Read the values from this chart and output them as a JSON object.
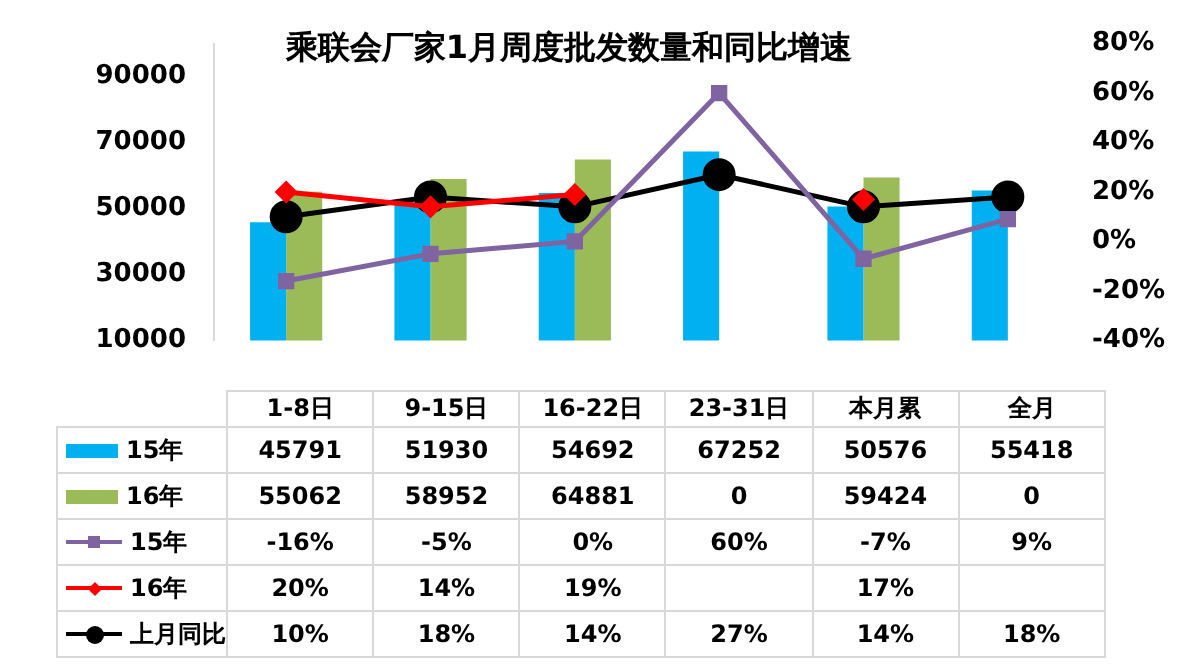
{
  "chart_data": {
    "type": "bar",
    "title": "乘联会厂家1月周度批发数量和同比增速",
    "categories": [
      "1-8日",
      "9-15日",
      "16-22日",
      "23-31日",
      "本月累",
      "全月"
    ],
    "series": [
      {
        "name": "15年",
        "color": "#00b0f0",
        "values": [
          45791,
          51930,
          54692,
          67252,
          50576,
          55418
        ],
        "value_labels": [
          "45791",
          "51930",
          "54692",
          "67252",
          "50576",
          "55418"
        ]
      },
      {
        "name": "16年",
        "color": "#9bbb59",
        "values": [
          55062,
          58952,
          64881,
          null,
          59424,
          null
        ],
        "value_labels": [
          "55062",
          "58952",
          "64881",
          "0",
          "59424",
          "0"
        ]
      },
      {
        "name": "15年",
        "type": "line",
        "axis": "y2",
        "marker": "square",
        "color": "#8064a2",
        "values": [
          -16,
          -5,
          0,
          60,
          -7,
          9
        ],
        "value_labels": [
          "-16%",
          "-5%",
          "0%",
          "60%",
          "-7%",
          "9%"
        ]
      },
      {
        "name": "16年",
        "type": "line",
        "axis": "y2",
        "marker": "diamond",
        "color": "#ff0000",
        "values": [
          20,
          14,
          19,
          null,
          17,
          null
        ],
        "value_labels": [
          "20%",
          "14%",
          "19%",
          null,
          "17%",
          null
        ]
      },
      {
        "name": "上月同比",
        "type": "line",
        "axis": "y2",
        "marker": "circle",
        "color": "#000000",
        "values": [
          10,
          18,
          14,
          27,
          14,
          18
        ],
        "value_labels": [
          "10%",
          "18%",
          "14%",
          "27%",
          "14%",
          "18%"
        ]
      }
    ],
    "ylim": [
      10000,
      100000
    ],
    "yticks": [
      10000,
      30000,
      50000,
      70000,
      90000
    ],
    "y2lim": [
      -40,
      80
    ],
    "y2ticks": [
      {
        "value": -40,
        "label": "-40%"
      },
      {
        "value": -20,
        "label": "-20%"
      },
      {
        "value": 0,
        "label": "0%"
      },
      {
        "value": 20,
        "label": "20%"
      },
      {
        "value": 40,
        "label": "40%"
      },
      {
        "value": 60,
        "label": "60%"
      },
      {
        "value": 80,
        "label": "80%"
      }
    ],
    "grid": false,
    "legend": "bottom"
  }
}
